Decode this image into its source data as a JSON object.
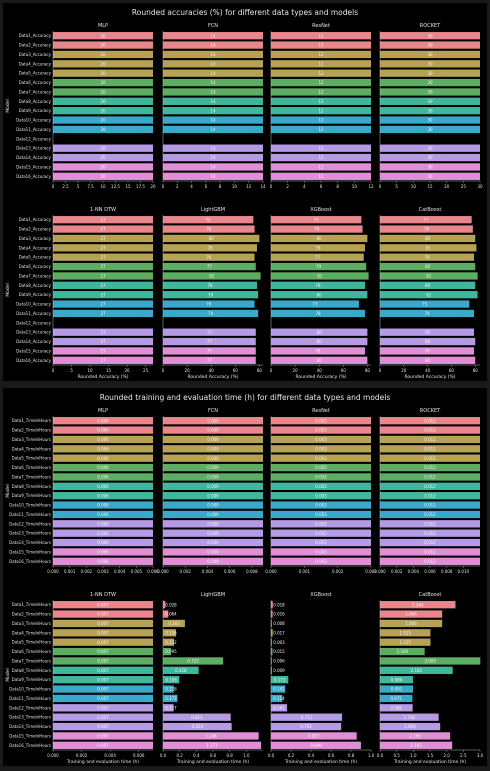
{
  "colors": {
    "background": "#000000",
    "panel": "#000000",
    "text": "#e6e6e6",
    "axis": "#bbbbbb",
    "group_colors": [
      "#e8868c",
      "#e8868c",
      "#b7a155",
      "#b7a155",
      "#b7a155",
      "#5dad62",
      "#5dad62",
      "#3fb79c",
      "#3fb79c",
      "#3aa8c8",
      "#3aa8c8",
      "#b59be6",
      "#b59be6",
      "#b59be6",
      "#e08ed6",
      "#e08ed6"
    ]
  },
  "figures": [
    {
      "title": "Rounded accuracies (%) for different data types and models",
      "chart_data": [
        {
          "type": "bar",
          "orientation": "horizontal",
          "title": "MLP",
          "ylabel": "Model",
          "xlabel": "",
          "categories": [
            "Data1_Accuracy",
            "Data2_Accuracy",
            "Data3_Accuracy",
            "Data4_Accuracy",
            "Data5_Accuracy",
            "Data6_Accuracy",
            "Data7_Accuracy",
            "Data8_Accuracy",
            "Data9_Accuracy",
            "Data10_Accuracy",
            "Data11_Accuracy",
            "Data12_Accuracy",
            "Data13_Accuracy",
            "Data14_Accuracy",
            "Data15_Accuracy",
            "Data16_Accuracy"
          ],
          "values": [
            20,
            20,
            20,
            20,
            20,
            20,
            20,
            20,
            20,
            20,
            20,
            null,
            20,
            20,
            20,
            20
          ],
          "labels": [
            "20",
            "20",
            "20",
            "20",
            "20",
            "20",
            "20",
            "20",
            "20",
            "20",
            "20",
            "",
            "20",
            "20",
            "20",
            "20"
          ],
          "xlim": [
            0,
            20
          ],
          "xticks": [
            "0",
            "2.5",
            "5",
            "7.5",
            "10",
            "12.5",
            "15",
            "17.5",
            "20"
          ]
        },
        {
          "type": "bar",
          "orientation": "horizontal",
          "title": "FCN",
          "xlabel": "",
          "values": [
            14,
            14,
            14,
            14,
            14,
            14,
            14,
            14,
            14,
            14,
            14,
            null,
            14,
            14,
            14,
            14
          ],
          "labels": [
            "14",
            "14",
            "14",
            "14",
            "14",
            "14",
            "14",
            "14",
            "14",
            "14",
            "14",
            "",
            "14",
            "14",
            "14",
            "14"
          ],
          "xlim": [
            0,
            14
          ],
          "xticks": [
            "0",
            "2",
            "4",
            "6",
            "8",
            "10",
            "12",
            "14"
          ]
        },
        {
          "type": "bar",
          "orientation": "horizontal",
          "title": "ResNet",
          "xlabel": "",
          "values": [
            12,
            12,
            12,
            12,
            12,
            12,
            12,
            12,
            12,
            12,
            12,
            null,
            12,
            12,
            12,
            12
          ],
          "labels": [
            "12",
            "12",
            "12",
            "12",
            "12",
            "12",
            "12",
            "12",
            "12",
            "12",
            "12",
            "",
            "12",
            "12",
            "12",
            "12"
          ],
          "xlim": [
            0,
            12
          ],
          "xticks": [
            "0",
            "2",
            "4",
            "6",
            "8",
            "10",
            "12"
          ]
        },
        {
          "type": "bar",
          "orientation": "horizontal",
          "title": "ROCKET",
          "xlabel": "",
          "values": [
            30,
            30,
            30,
            30,
            30,
            30,
            30,
            30,
            30,
            30,
            30,
            null,
            30,
            30,
            30,
            30
          ],
          "labels": [
            "30",
            "30",
            "30",
            "30",
            "30",
            "30",
            "30",
            "30",
            "30",
            "30",
            "30",
            "",
            "30",
            "30",
            "30",
            "30"
          ],
          "xlim": [
            0,
            30
          ],
          "xticks": [
            "0",
            "5",
            "10",
            "15",
            "20",
            "25",
            "30"
          ]
        },
        {
          "type": "bar",
          "orientation": "horizontal",
          "title": "1-NN DTW",
          "ylabel": "Model",
          "xlabel": "Rounded Accuracy (%)",
          "categories": [
            "Data1_Accuracy",
            "Data2_Accuracy",
            "Data3_Accuracy",
            "Data4_Accuracy",
            "Data5_Accuracy",
            "Data6_Accuracy",
            "Data7_Accuracy",
            "Data8_Accuracy",
            "Data9_Accuracy",
            "Data10_Accuracy",
            "Data11_Accuracy",
            "Data12_Accuracy",
            "Data13_Accuracy",
            "Data14_Accuracy",
            "Data15_Accuracy",
            "Data16_Accuracy"
          ],
          "values": [
            27,
            27,
            27,
            27,
            27,
            27,
            27,
            27,
            27,
            27,
            27,
            null,
            27,
            27,
            27,
            27
          ],
          "labels": [
            "27",
            "27",
            "27",
            "27",
            "27",
            "27",
            "27",
            "27",
            "27",
            "27",
            "27",
            "",
            "27",
            "27",
            "27",
            "27"
          ],
          "xlim": [
            0,
            27
          ],
          "xticks": [
            "0",
            "5",
            "10",
            "15",
            "20",
            "25"
          ]
        },
        {
          "type": "bar",
          "orientation": "horizontal",
          "title": "LightGBM",
          "xlabel": "Rounded Accuracy (%)",
          "values": [
            75,
            76,
            80,
            78,
            76,
            77,
            81,
            78,
            79,
            76,
            79,
            null,
            77,
            77,
            77,
            77
          ],
          "labels": [
            "75",
            "76",
            "80",
            "78",
            "76",
            "77",
            "81",
            "78",
            "79",
            "76",
            "79",
            "",
            "77",
            "77",
            "77",
            "77"
          ],
          "xlim": [
            0,
            83
          ],
          "xticks": [
            "0",
            "20",
            "40",
            "60",
            "80"
          ]
        },
        {
          "type": "bar",
          "orientation": "horizontal",
          "title": "XGBoost",
          "xlabel": "Rounded Accuracy (%)",
          "values": [
            75,
            76,
            80,
            78,
            77,
            79,
            81,
            78,
            80,
            73,
            78,
            null,
            80,
            80,
            78,
            80
          ],
          "labels": [
            "75",
            "76",
            "80",
            "78",
            "77",
            "79",
            "81",
            "78",
            "80",
            "73",
            "78",
            "",
            "80",
            "80",
            "78",
            "80"
          ],
          "xlim": [
            0,
            83
          ],
          "xticks": [
            "0",
            "20",
            "40",
            "60",
            "80"
          ]
        },
        {
          "type": "bar",
          "orientation": "horizontal",
          "title": "CatBoost",
          "xlabel": "Rounded Accuracy (%)",
          "values": [
            77,
            78,
            80,
            81,
            79,
            80,
            82,
            80,
            82,
            75,
            79,
            null,
            79,
            80,
            79,
            80
          ],
          "labels": [
            "77",
            "78",
            "80",
            "81",
            "79",
            "80",
            "82",
            "80",
            "82",
            "75",
            "79",
            "",
            "79",
            "80",
            "79",
            "80"
          ],
          "xlim": [
            0,
            84
          ],
          "xticks": [
            "0",
            "20",
            "40",
            "60",
            "80"
          ]
        }
      ]
    },
    {
      "title": "Rounded training and evaluation time (h) for different data types and models",
      "chart_data": [
        {
          "type": "bar",
          "orientation": "horizontal",
          "title": "MLP",
          "ylabel": "Model",
          "xlabel": "",
          "categories": [
            "Data1_TimeInHours",
            "Data2_TimeInHours",
            "Data3_TimeInHours",
            "Data4_TimeInHours",
            "Data5_TimeInHours",
            "Data6_TimeInHours",
            "Data7_TimeInHours",
            "Data8_TimeInHours",
            "Data9_TimeInHours",
            "Data10_TimeInHours",
            "Data11_TimeInHours",
            "Data12_TimeInHours",
            "Data13_TimeInHours",
            "Data14_TimeInHours",
            "Data15_TimeInHours",
            "Data16_TimeInHours"
          ],
          "values": [
            0.006,
            0.006,
            0.006,
            0.006,
            0.006,
            0.006,
            0.006,
            0.006,
            0.006,
            0.006,
            0.006,
            0.006,
            0.006,
            0.006,
            0.006,
            0.006
          ],
          "labels": [
            "0.006",
            "0.006",
            "0.006",
            "0.006",
            "0.006",
            "0.006",
            "0.006",
            "0.006",
            "0.006",
            "0.006",
            "0.006",
            "0.006",
            "0.006",
            "0.006",
            "0.006",
            "0.006"
          ],
          "xlim": [
            0,
            0.006
          ],
          "xticks": [
            "0.000",
            "0.001",
            "0.002",
            "0.003",
            "0.004",
            "0.005",
            "0.006"
          ]
        },
        {
          "type": "bar",
          "orientation": "horizontal",
          "title": "FCN",
          "xlabel": "",
          "values": [
            0.009,
            0.009,
            0.009,
            0.009,
            0.009,
            0.009,
            0.009,
            0.009,
            0.009,
            0.009,
            0.009,
            0.009,
            0.009,
            0.009,
            0.009,
            0.009
          ],
          "labels": [
            "0.009",
            "0.009",
            "0.009",
            "0.009",
            "0.009",
            "0.009",
            "0.009",
            "0.009",
            "0.009",
            "0.009",
            "0.009",
            "0.009",
            "0.009",
            "0.009",
            "0.009",
            "0.009"
          ],
          "xlim": [
            0,
            0.009
          ],
          "xticks": [
            "0.000",
            "0.002",
            "0.004",
            "0.006",
            "0.008"
          ]
        },
        {
          "type": "bar",
          "orientation": "horizontal",
          "title": "ResNet",
          "xlabel": "",
          "values": [
            0.003,
            0.003,
            0.003,
            0.003,
            0.003,
            0.003,
            0.003,
            0.003,
            0.003,
            0.003,
            0.003,
            0.003,
            0.003,
            0.003,
            0.003,
            0.003
          ],
          "labels": [
            "0.003",
            "0.003",
            "0.003",
            "0.003",
            "0.003",
            "0.003",
            "0.003",
            "0.003",
            "0.003",
            "0.003",
            "0.003",
            "0.003",
            "0.003",
            "0.003",
            "0.003",
            "0.003"
          ],
          "xlim": [
            0,
            0.003
          ],
          "xticks": [
            "0.000",
            "0.001",
            "0.002",
            "0.003"
          ]
        },
        {
          "type": "bar",
          "orientation": "horizontal",
          "title": "ROCKET",
          "xlabel": "",
          "values": [
            0.012,
            0.012,
            0.012,
            0.012,
            0.012,
            0.012,
            0.012,
            0.012,
            0.012,
            0.012,
            0.012,
            0.012,
            0.012,
            0.012,
            0.012,
            0.012
          ],
          "labels": [
            "0.012",
            "0.012",
            "0.012",
            "0.012",
            "0.012",
            "0.012",
            "0.012",
            "0.012",
            "0.012",
            "0.012",
            "0.012",
            "0.012",
            "0.012",
            "0.012",
            "0.012",
            "0.012"
          ],
          "xlim": [
            0,
            0.012
          ],
          "xticks": [
            "0.000",
            "0.002",
            "0.004",
            "0.006",
            "0.008",
            "0.010"
          ]
        },
        {
          "type": "bar",
          "orientation": "horizontal",
          "title": "1-NN DTW",
          "ylabel": "Model",
          "xlabel": "Training and evaluation time (h)",
          "categories": [
            "Data1_TimeInHours",
            "Data2_TimeInHours",
            "Data3_TimeInHours",
            "Data4_TimeInHours",
            "Data5_TimeInHours",
            "Data6_TimeInHours",
            "Data7_TimeInHours",
            "Data8_TimeInHours",
            "Data9_TimeInHours",
            "Data10_TimeInHours",
            "Data11_TimeInHours",
            "Data12_TimeInHours",
            "Data13_TimeInHours",
            "Data14_TimeInHours",
            "Data15_TimeInHours",
            "Data16_TimeInHours"
          ],
          "values": [
            0.007,
            0.007,
            0.007,
            0.007,
            0.007,
            0.007,
            0.007,
            0.007,
            0.007,
            0.007,
            0.007,
            0.007,
            0.007,
            0.007,
            0.007,
            0.007
          ],
          "labels": [
            "0.007",
            "0.007",
            "0.007",
            "0.007",
            "0.007",
            "0.007",
            "0.007",
            "0.007",
            "0.007",
            "0.007",
            "0.007",
            "0.007",
            "0.007",
            "0.007",
            "0.007",
            "0.007"
          ],
          "xlim": [
            0,
            0.007
          ],
          "xticks": [
            "0.000",
            "0.002",
            "0.004",
            "0.006"
          ]
        },
        {
          "type": "bar",
          "orientation": "horizontal",
          "title": "LightGBM",
          "xlabel": "Training and evaluation time (h)",
          "values": [
            0.028,
            0.064,
            0.263,
            0.156,
            0.132,
            0.095,
            0.722,
            0.428,
            0.196,
            0.128,
            0.173,
            0.127,
            0.813,
            0.824,
            1.148,
            1.177
          ],
          "labels": [
            "0.028",
            "0.064",
            "0.263",
            "0.156",
            "0.132",
            "0.095",
            "0.722",
            "0.428",
            "0.196",
            "0.128",
            "0.173",
            "0.127",
            "0.813",
            "0.824",
            "1.148",
            "1.177"
          ],
          "xlim": [
            0,
            1.2
          ],
          "xticks": [
            "0.0",
            "0.2",
            "0.4",
            "0.6",
            "0.8",
            "1.0"
          ]
        },
        {
          "type": "bar",
          "orientation": "horizontal",
          "title": "XGBoost",
          "xlabel": "Training and evaluation time (h)",
          "values": [
            0.018,
            0.016,
            0.008,
            0.017,
            0.003,
            0.015,
            0.006,
            0.009,
            0.173,
            0.142,
            0.114,
            0.161,
            0.711,
            0.702,
            0.857,
            0.899
          ],
          "labels": [
            "0.018",
            "0.016",
            "0.008",
            "0.017",
            "0.003",
            "0.015",
            "0.006",
            "0.009",
            "0.173",
            "0.142",
            "0.114",
            "0.161",
            "0.711",
            "0.702",
            "0.857",
            "0.899"
          ],
          "xlim": [
            0,
            1.0
          ],
          "xticks": [
            "0.0",
            "0.2",
            "0.4",
            "0.6",
            "0.8",
            "1.0"
          ]
        },
        {
          "type": "bar",
          "orientation": "horizontal",
          "title": "CatBoost",
          "xlabel": "Training and evaluation time (h)",
          "values": [
            2.264,
            1.866,
            1.866,
            1.515,
            1.515,
            1.34,
            3.009,
            2.182,
            0.989,
            0.991,
            0.972,
            0.98,
            1.76,
            1.806,
            2.106,
            2.165
          ],
          "labels": [
            "2.264",
            "1.866",
            "1.866",
            "1.515",
            "1.515",
            "1.340",
            "3.009",
            "2.182",
            "0.989",
            "0.991",
            "0.972",
            "0.980",
            "1.760",
            "1.806",
            "2.106",
            "2.165"
          ],
          "xlim": [
            0,
            3.0
          ],
          "xticks": [
            "0.0",
            "0.5",
            "1.0",
            "1.5",
            "2.0",
            "2.5",
            "3.0"
          ]
        }
      ]
    }
  ]
}
